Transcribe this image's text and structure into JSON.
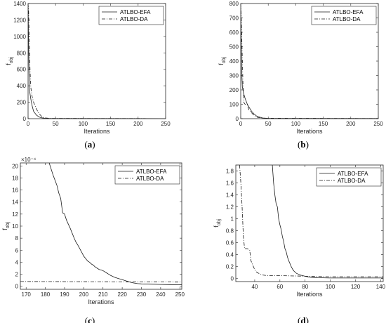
{
  "chart_data": [
    {
      "type": "line",
      "caption_letter": "a",
      "xlabel": "Iterations",
      "ylabel_main": "f",
      "ylabel_sub": "obj",
      "xlim": [
        0,
        250
      ],
      "ylim": [
        0,
        1400
      ],
      "xticks": [
        0,
        50,
        100,
        150,
        200,
        250
      ],
      "yticks": [
        0,
        200,
        400,
        600,
        800,
        1000,
        1200,
        1400
      ],
      "ytick_labels": [
        "0",
        "200",
        "400",
        "600",
        "800",
        "1000",
        "1200",
        "1400"
      ],
      "exponent_label": "",
      "legend_position": "top-right",
      "series": [
        {
          "name": "ATLBO-EFA",
          "style": "solid",
          "x": [
            0,
            1,
            2,
            3,
            4,
            5,
            6,
            8,
            10,
            15,
            20,
            25,
            30,
            40,
            250
          ],
          "y": [
            1400,
            900,
            400,
            330,
            280,
            240,
            200,
            140,
            90,
            45,
            20,
            10,
            5,
            2,
            1
          ]
        },
        {
          "name": "ATLBO-DA",
          "style": "dashdot",
          "x": [
            0,
            1,
            2,
            3,
            4,
            5,
            7,
            10,
            15,
            20,
            25,
            30,
            40,
            250
          ],
          "y": [
            1400,
            1300,
            1000,
            700,
            520,
            380,
            280,
            200,
            120,
            60,
            25,
            10,
            3,
            1
          ]
        }
      ]
    },
    {
      "type": "line",
      "caption_letter": "b",
      "xlabel": "Iterations",
      "ylabel_main": "f",
      "ylabel_sub": "obj",
      "xlim": [
        0,
        250
      ],
      "ylim": [
        0,
        800
      ],
      "xticks": [
        0,
        50,
        100,
        150,
        200,
        250
      ],
      "yticks": [
        0,
        100,
        200,
        300,
        400,
        500,
        600,
        700,
        800
      ],
      "ytick_labels": [
        "0",
        "100",
        "200",
        "300",
        "400",
        "500",
        "600",
        "700",
        "800"
      ],
      "exponent_label": "",
      "legend_position": "top-right",
      "series": [
        {
          "name": "ATLBO-EFA",
          "style": "solid",
          "x": [
            0,
            1,
            2,
            3,
            4,
            5,
            8,
            12,
            15,
            20,
            25,
            30,
            40,
            50,
            250
          ],
          "y": [
            800,
            500,
            300,
            220,
            200,
            180,
            140,
            100,
            80,
            50,
            30,
            15,
            5,
            2,
            1
          ]
        },
        {
          "name": "ATLBO-DA",
          "style": "dashdot",
          "x": [
            0,
            1,
            2,
            3,
            4,
            6,
            8,
            12,
            15,
            20,
            25,
            30,
            40,
            250
          ],
          "y": [
            800,
            700,
            550,
            400,
            250,
            110,
            100,
            95,
            60,
            40,
            20,
            10,
            3,
            1
          ]
        }
      ]
    },
    {
      "type": "line",
      "caption_letter": "c",
      "xlabel": "Iterations",
      "ylabel_main": "f",
      "ylabel_sub": "obj",
      "xlim": [
        167,
        251
      ],
      "ylim": [
        -0.5,
        20.5
      ],
      "xticks": [
        170,
        180,
        190,
        200,
        210,
        220,
        230,
        240,
        250
      ],
      "yticks": [
        0,
        2,
        4,
        6,
        8,
        10,
        12,
        14,
        16,
        18,
        20
      ],
      "ytick_labels": [
        "0",
        "2",
        "4",
        "6",
        "8",
        "10",
        "12",
        "14",
        "16",
        "18",
        "20"
      ],
      "exponent_label": "×10⁻⁴",
      "legend_position": "top-right",
      "series": [
        {
          "name": "ATLBO-EFA",
          "style": "solid",
          "x": [
            182,
            184,
            186,
            187,
            188,
            189,
            190,
            191,
            192,
            193,
            194,
            195,
            196,
            197,
            198,
            199,
            200,
            201,
            202,
            203,
            204,
            205,
            206,
            207,
            208,
            210,
            212,
            214,
            216,
            218,
            220,
            222,
            224,
            226,
            228,
            230,
            235,
            240,
            245,
            251
          ],
          "y": [
            20.5,
            18.5,
            16.8,
            15.5,
            14.6,
            12.2,
            12.0,
            11.0,
            10.3,
            9.6,
            8.8,
            8.0,
            7.3,
            6.8,
            6.2,
            5.6,
            5.0,
            4.6,
            4.2,
            4.0,
            3.7,
            3.5,
            3.2,
            3.0,
            2.8,
            2.6,
            2.2,
            1.8,
            1.5,
            1.3,
            1.1,
            0.9,
            0.7,
            0.55,
            0.45,
            0.4,
            0.35,
            0.3,
            0.28,
            0.25
          ]
        },
        {
          "name": "ATLBO-DA",
          "style": "dashdot",
          "x": [
            167,
            251
          ],
          "y": [
            0.8,
            0.7
          ]
        }
      ]
    },
    {
      "type": "line",
      "caption_letter": "d",
      "xlabel": "Iterations",
      "ylabel_main": "f",
      "ylabel_sub": "obj",
      "xlim": [
        25,
        142
      ],
      "ylim": [
        -0.05,
        1.9
      ],
      "xticks": [
        40,
        60,
        80,
        100,
        120,
        140
      ],
      "yticks": [
        0,
        0.2,
        0.4,
        0.6,
        0.8,
        1,
        1.2,
        1.4,
        1.6,
        1.8
      ],
      "ytick_labels": [
        "0",
        "0.2",
        "0.4",
        "0.6",
        "0.8",
        "1",
        "1.2",
        "1.4",
        "1.6",
        "1.8"
      ],
      "exponent_label": "",
      "legend_position": "top-right",
      "series": [
        {
          "name": "ATLBO-EFA",
          "style": "solid",
          "x": [
            54,
            55,
            56,
            57,
            58,
            59,
            60,
            61,
            62,
            63,
            64,
            65,
            66,
            67,
            68,
            69,
            70,
            71,
            72,
            73,
            74,
            75,
            76,
            78,
            80,
            82,
            85,
            90,
            100,
            120,
            142
          ],
          "y": [
            1.9,
            1.6,
            1.4,
            1.25,
            1.2,
            1.0,
            0.9,
            0.82,
            0.7,
            0.62,
            0.5,
            0.45,
            0.36,
            0.3,
            0.25,
            0.2,
            0.16,
            0.13,
            0.11,
            0.09,
            0.08,
            0.07,
            0.06,
            0.05,
            0.04,
            0.03,
            0.02,
            0.015,
            0.01,
            0.01,
            0.01
          ]
        },
        {
          "name": "ATLBO-DA",
          "style": "dashdot",
          "x": [
            28,
            29,
            30,
            31,
            32,
            33,
            34,
            35,
            36,
            37,
            38,
            39,
            40,
            41,
            42,
            44,
            46,
            50,
            60,
            80,
            100,
            142
          ],
          "y": [
            1.9,
            1.6,
            1.2,
            0.7,
            0.5,
            0.5,
            0.5,
            0.49,
            0.48,
            0.3,
            0.25,
            0.2,
            0.15,
            0.12,
            0.1,
            0.08,
            0.06,
            0.05,
            0.05,
            0.04,
            0.03,
            0.03
          ]
        }
      ]
    }
  ]
}
